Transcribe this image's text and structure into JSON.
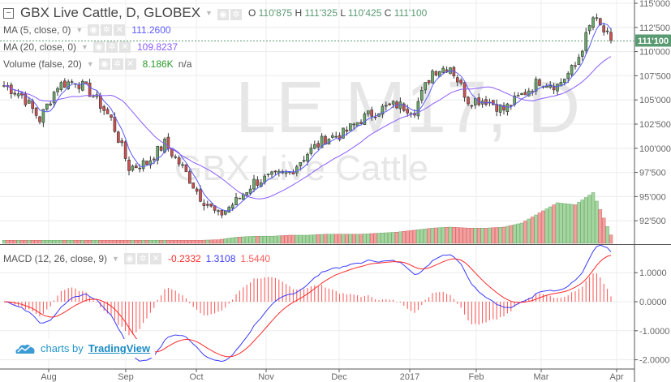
{
  "header": {
    "symbol_title": "GBX Live Cattle, D, GLOBEX",
    "o_label": "O",
    "o": "110'875",
    "h_label": "H",
    "h": "111'325",
    "l": "110'425",
    "c_label": "C",
    "c": "111'100"
  },
  "indicators": [
    {
      "label": "MA (5, close, 0)",
      "value": "111.2600",
      "color": "#5b5bff"
    },
    {
      "label": "MA (20, close, 0)",
      "value": "109.8237",
      "color": "#8a5cff"
    },
    {
      "label": "Volume (false, 20)",
      "value": "8.186K",
      "extra": "n/a",
      "color": "#2a9a2a"
    }
  ],
  "macd": {
    "label": "MACD (12, 26, close, 9)",
    "hist": "-0.2332",
    "macd": "1.3108",
    "signal": "1.5440"
  },
  "watermark": {
    "big": "LE M17, D",
    "small": "GBX Live Cattle"
  },
  "last_price_label": "111'100",
  "branding": {
    "prefix": "charts by",
    "name": "TradingView"
  },
  "colors": {
    "up": "#6aa96a",
    "down": "#d05050",
    "vol_up": "#a5d6a0",
    "vol_down": "#f4a0a0",
    "ma5": "#5b5bff",
    "ma20": "#8a5cff",
    "macd": "#3a3aff",
    "signal": "#ff2a2a",
    "last": "#5a9a72"
  },
  "chart_data": {
    "type": "candlestick",
    "price_axis": {
      "ticks": [
        "115'000",
        "112'500",
        "110'000",
        "107'500",
        "105'000",
        "102'500",
        "100'000",
        "97'500",
        "95'000",
        "92'500"
      ],
      "range": [
        90.3,
        115.3
      ]
    },
    "macd_axis": {
      "ticks": [
        "1.0000",
        "0.0000",
        "-1.0000",
        "-2.0000"
      ],
      "range": [
        -2.3,
        1.9
      ]
    },
    "time_axis": [
      "Aug",
      "Sep",
      "Oct",
      "Nov",
      "Dec",
      "2017",
      "Feb",
      "Mar",
      "Apr"
    ],
    "weekly_close": [
      106.5,
      105.5,
      103,
      106.5,
      107,
      105.5,
      103,
      98,
      98.5,
      100.5,
      98,
      95,
      93,
      94.5,
      96.5,
      97,
      97.5,
      99.5,
      101,
      101.5,
      103,
      104,
      104.5,
      104,
      108,
      108.5,
      105,
      105,
      104,
      105.5,
      107,
      106.5,
      108.5,
      113.5,
      111.1
    ],
    "weekly_volume_k": [
      3,
      3,
      3,
      3,
      3,
      3,
      3,
      3,
      3,
      3,
      3,
      3,
      3.5,
      6,
      7,
      7,
      8,
      8,
      9,
      9,
      9,
      10,
      11,
      13,
      15,
      16,
      15,
      15,
      16,
      20,
      30,
      40,
      38,
      50,
      8.186
    ]
  }
}
